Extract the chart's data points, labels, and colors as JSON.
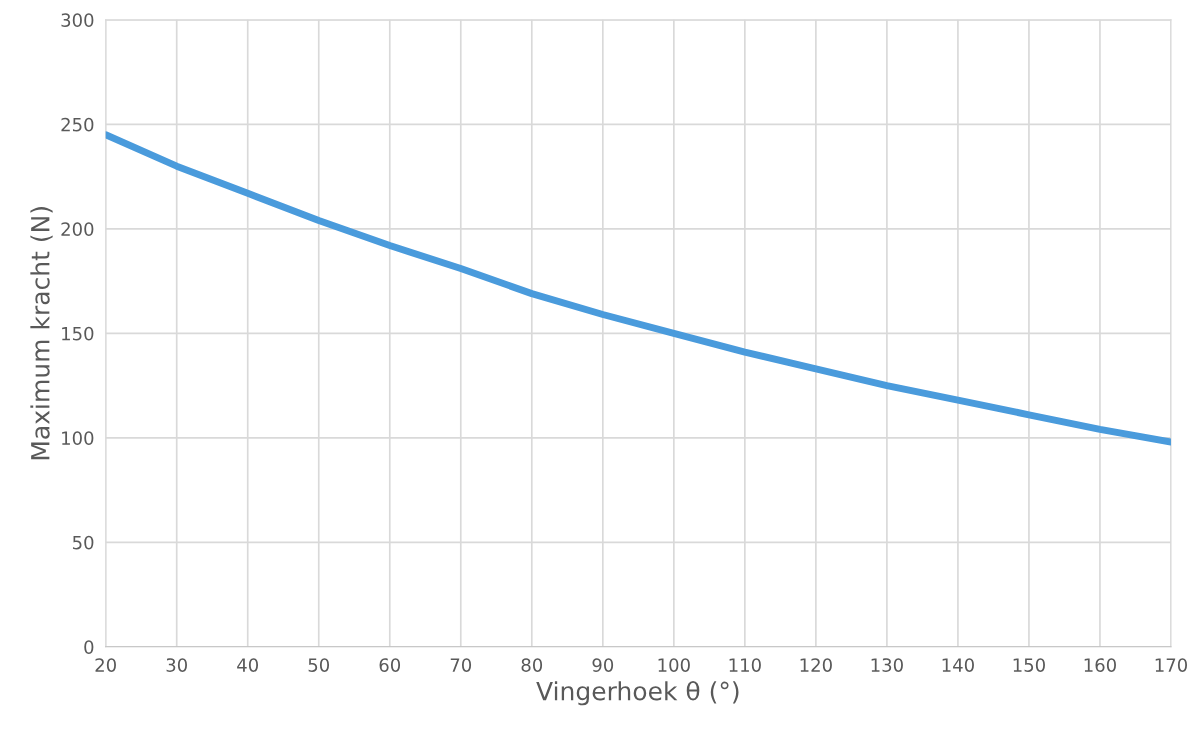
{
  "chart_data": {
    "type": "line",
    "xlabel": "Vingerhoek θ (°)",
    "ylabel": "Maximum kracht (N)",
    "x": [
      20,
      30,
      40,
      50,
      60,
      70,
      80,
      90,
      100,
      110,
      120,
      130,
      140,
      150,
      160,
      170
    ],
    "series": [
      {
        "color": "#4a9bdc",
        "values": [
          245,
          230,
          217,
          204,
          192,
          181,
          169,
          159,
          150,
          141,
          133,
          125,
          118,
          111,
          104,
          98
        ]
      }
    ],
    "xlim": [
      20,
      170
    ],
    "xticks": [
      20,
      30,
      40,
      50,
      60,
      70,
      80,
      90,
      100,
      110,
      120,
      130,
      140,
      150,
      160,
      170
    ],
    "ylim": [
      0,
      300
    ],
    "yticks": [
      0,
      50,
      100,
      150,
      200,
      250,
      300
    ],
    "grid": true,
    "marker": "none",
    "line_style": "solid",
    "legend": false
  }
}
